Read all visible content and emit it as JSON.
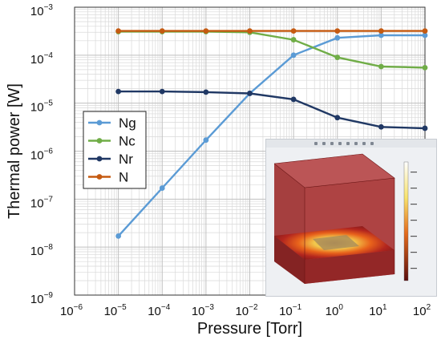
{
  "chart_data": {
    "type": "line",
    "title": "",
    "xlabel": "Pressure [Torr]",
    "ylabel": "Thermal power [W]",
    "xscale": "log",
    "yscale": "log",
    "xlim": [
      1e-06,
      100
    ],
    "ylim": [
      1e-09,
      0.001
    ],
    "xticks": [
      {
        "base": "10",
        "exp": "−6"
      },
      {
        "base": "10",
        "exp": "−5"
      },
      {
        "base": "10",
        "exp": "−4"
      },
      {
        "base": "10",
        "exp": "−3"
      },
      {
        "base": "10",
        "exp": "−2"
      },
      {
        "base": "10",
        "exp": "−1"
      },
      {
        "base": "10",
        "exp": "0"
      },
      {
        "base": "10",
        "exp": "1"
      },
      {
        "base": "10",
        "exp": "2"
      }
    ],
    "yticks": [
      {
        "base": "10",
        "exp": "−9"
      },
      {
        "base": "10",
        "exp": "−8"
      },
      {
        "base": "10",
        "exp": "−7"
      },
      {
        "base": "10",
        "exp": "−6"
      },
      {
        "base": "10",
        "exp": "−5"
      },
      {
        "base": "10",
        "exp": "−4"
      },
      {
        "base": "10",
        "exp": "−3"
      }
    ],
    "grid": true,
    "legend_position": "left",
    "x": [
      1e-05,
      0.0001,
      0.001,
      0.01,
      0.1,
      1,
      10,
      100
    ],
    "series": [
      {
        "name": "Ng",
        "color": "#5b9bd5",
        "values": [
          1.7e-08,
          1.7e-07,
          1.7e-06,
          1.6e-05,
          0.0001,
          0.00023,
          0.00026,
          0.00026
        ]
      },
      {
        "name": "Nc",
        "color": "#70ad47",
        "values": [
          0.00031,
          0.00031,
          0.00031,
          0.0003,
          0.00021,
          9e-05,
          5.8e-05,
          5.5e-05
        ]
      },
      {
        "name": "Nr",
        "color": "#203864",
        "values": [
          1.75e-05,
          1.75e-05,
          1.7e-05,
          1.6e-05,
          1.2e-05,
          5e-06,
          3.2e-06,
          3e-06
        ]
      },
      {
        "name": "N",
        "color": "#c55a11",
        "values": [
          0.00032,
          0.00032,
          0.00032,
          0.00032,
          0.00032,
          0.00032,
          0.00032,
          0.00032
        ]
      }
    ]
  },
  "inset": {
    "description_hidden": true,
    "colors": {
      "box": "#a83232",
      "hot": "#f4d160",
      "mid": "#e0661e",
      "panel": "#eef0f3"
    }
  }
}
